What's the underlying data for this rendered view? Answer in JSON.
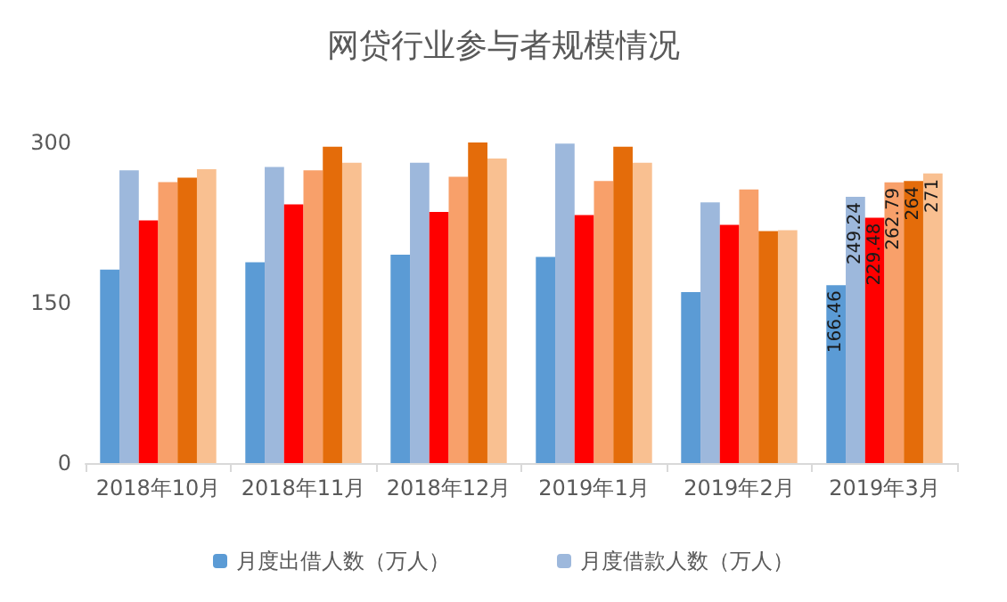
{
  "chart_data": {
    "type": "bar",
    "title": "网贷行业参与者规模情况",
    "categories": [
      "2018年10月",
      "2018年11月",
      "2018年12月",
      "2019年1月",
      "2019年2月",
      "2019年3月"
    ],
    "series": [
      {
        "name": "月度出借人数（万人）",
        "color": "#5b9bd5",
        "values": [
          181,
          188,
          195,
          193,
          160,
          166.46
        ],
        "value_labels": [
          null,
          null,
          null,
          null,
          null,
          "166.46"
        ]
      },
      {
        "name": "月度借款人数（万人）",
        "color": "#9db8dc",
        "values": [
          274,
          277,
          281,
          299,
          244,
          249.24
        ],
        "value_labels": [
          null,
          null,
          null,
          null,
          null,
          "249.24"
        ]
      },
      {
        "color": "#ff0000",
        "values": [
          227,
          242,
          235,
          232,
          223,
          229.48
        ],
        "value_labels": [
          null,
          null,
          null,
          null,
          null,
          "229.48"
        ]
      },
      {
        "color": "#f8a06a",
        "values": [
          263,
          274,
          268,
          264,
          256,
          262.79
        ],
        "value_labels": [
          null,
          null,
          null,
          null,
          null,
          "262.79"
        ]
      },
      {
        "color": "#e46c0a",
        "values": [
          267,
          296,
          300,
          296,
          217,
          264
        ],
        "value_labels": [
          null,
          null,
          null,
          null,
          null,
          "264"
        ]
      },
      {
        "color": "#f9c091",
        "values": [
          275,
          281,
          285,
          281,
          218,
          271
        ],
        "value_labels": [
          null,
          null,
          null,
          null,
          null,
          "271"
        ]
      }
    ],
    "ylim": [
      0,
      300
    ],
    "yticks": [
      0,
      150,
      300
    ],
    "grid": false,
    "legend": "bottom"
  }
}
